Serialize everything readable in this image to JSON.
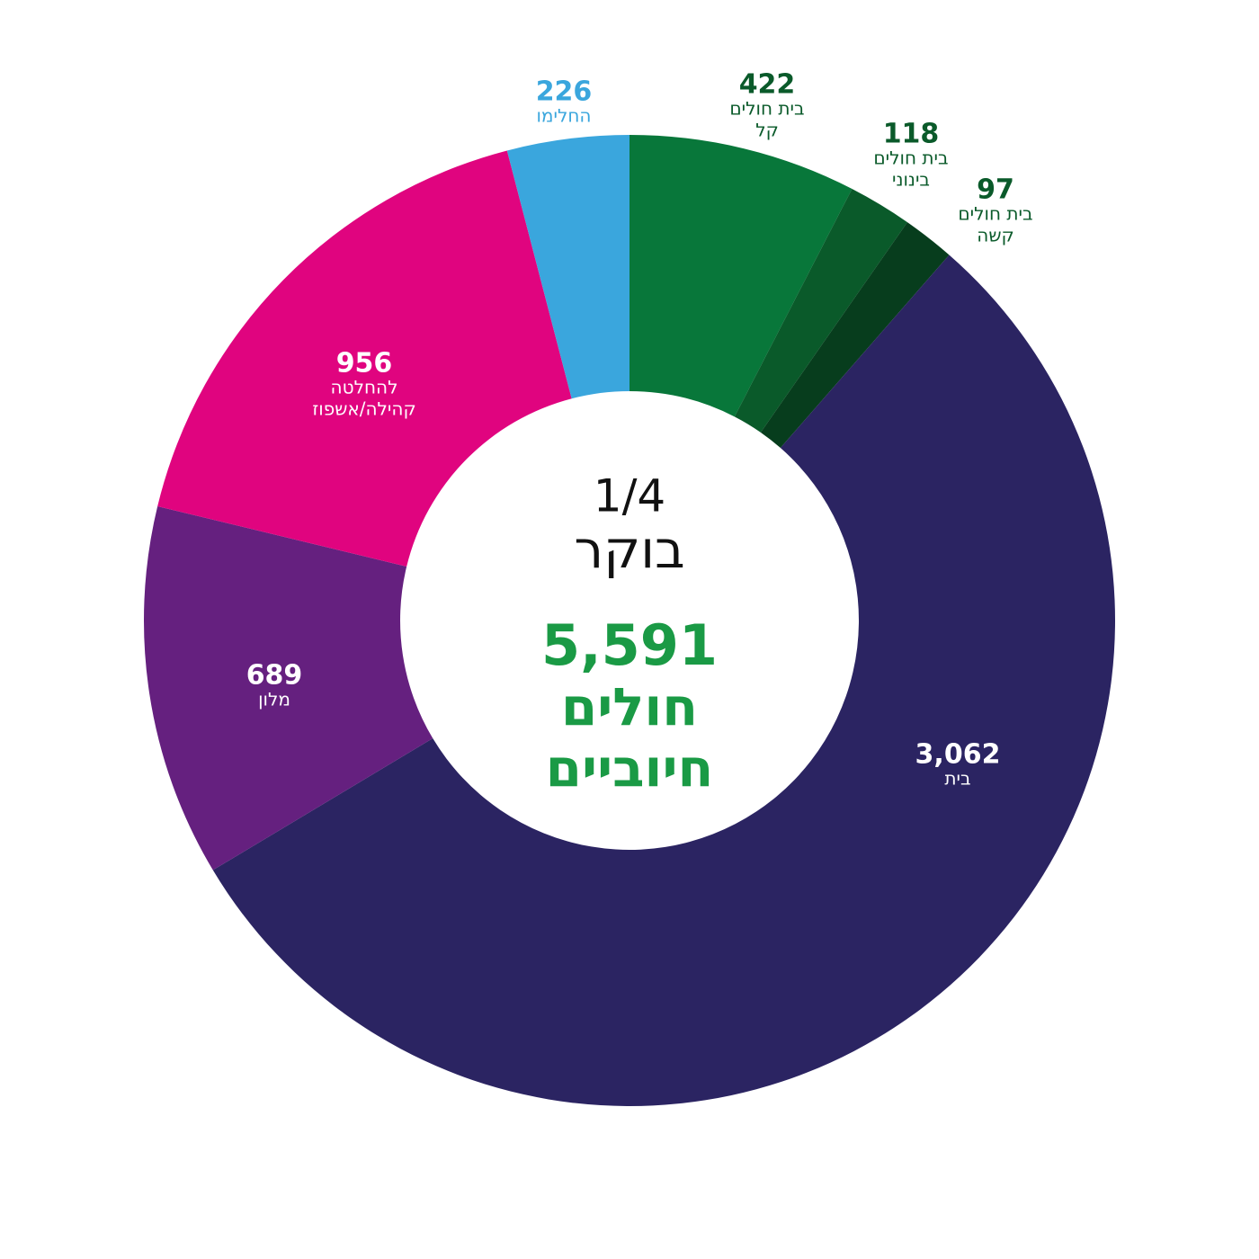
{
  "chart_data": {
    "type": "donut",
    "categories": [
      [
        "בית חולים",
        "קל"
      ],
      [
        "בית חולים",
        "בינוני"
      ],
      [
        "בית חולים",
        "קשה"
      ],
      [
        "בית"
      ],
      [
        "מלון"
      ],
      [
        "להחלטה",
        "קהילה/אשפוז"
      ],
      [
        "החלימו"
      ]
    ],
    "values": [
      422,
      118,
      97,
      3062,
      689,
      956,
      226
    ],
    "value_labels": [
      "422",
      "118",
      "97",
      "3,062",
      "689",
      "956",
      "226"
    ],
    "colors": [
      "#08773a",
      "#0a5a2a",
      "#073d1d",
      "#2b2462",
      "#65207f",
      "#e0047f",
      "#3aa6dd"
    ],
    "center_lines": [
      "1/4",
      "בוקר"
    ],
    "center_total": {
      "value": 5591,
      "label": "5,591"
    },
    "center_caption": [
      "חולים",
      "חיוביים"
    ]
  }
}
